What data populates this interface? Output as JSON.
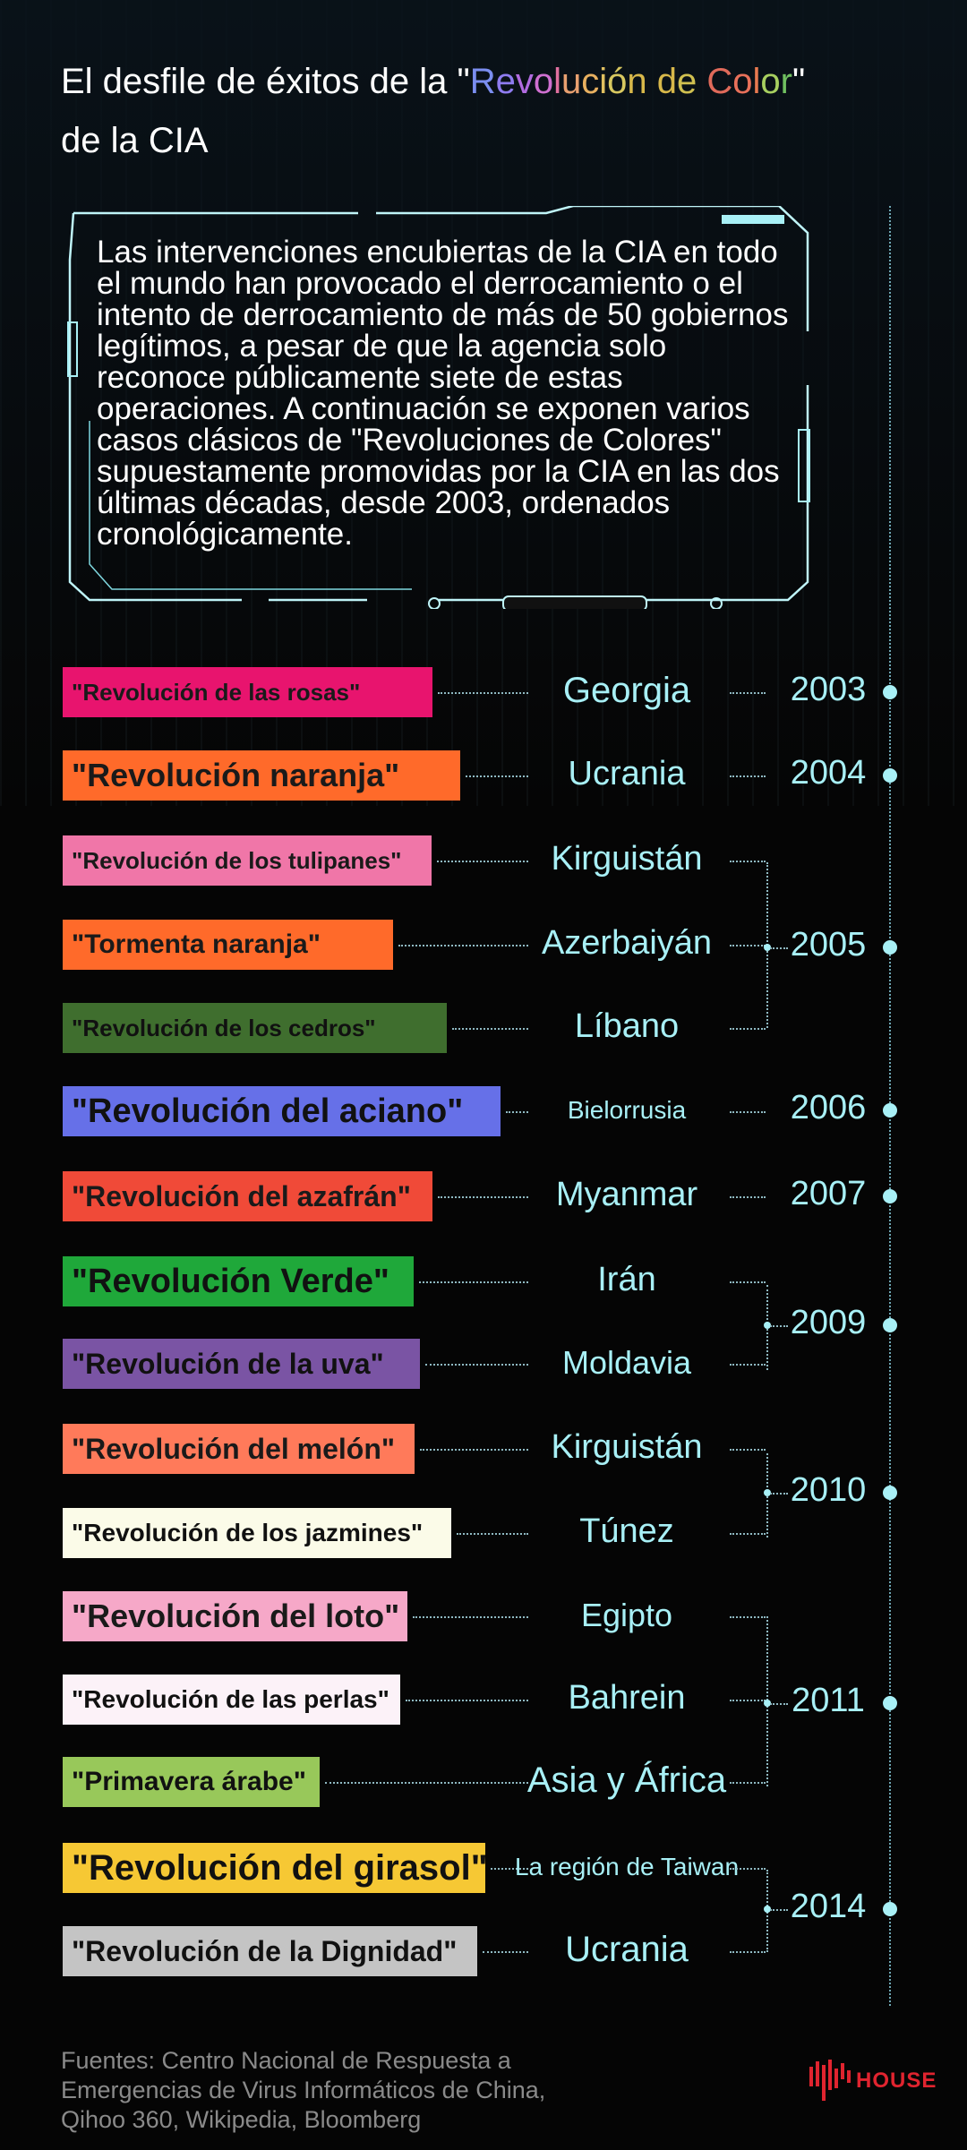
{
  "header": {
    "title_parts": [
      {
        "text": "El desfile de éxitos de la \"",
        "color": "#ffffff"
      },
      {
        "text": "R",
        "color": "#7b8ef0"
      },
      {
        "text": "e",
        "color": "#8f7cf0"
      },
      {
        "text": "v",
        "color": "#b16be0"
      },
      {
        "text": "o",
        "color": "#cf6fd0"
      },
      {
        "text": "l",
        "color": "#e070a0"
      },
      {
        "text": "u",
        "color": "#e8a070"
      },
      {
        "text": "c",
        "color": "#e8b060"
      },
      {
        "text": "i",
        "color": "#e0c060"
      },
      {
        "text": "ó",
        "color": "#d8c860"
      },
      {
        "text": "n d",
        "color": "#d8b84a"
      },
      {
        "text": "e ",
        "color": "#d0c050"
      },
      {
        "text": "C",
        "color": "#e06a5a"
      },
      {
        "text": "o",
        "color": "#e8705a"
      },
      {
        "text": "l",
        "color": "#e87a50"
      },
      {
        "text": "o",
        "color": "#a8d060"
      },
      {
        "text": "r",
        "color": "#70c060"
      },
      {
        "text": "\"",
        "color": "#ffffff"
      },
      {
        "text": " de la CIA",
        "color": "#ffffff",
        "break": true
      }
    ]
  },
  "intro_text": "Las intervenciones encubiertas de la CIA en todo el mundo han provocado el derrocamiento o el intento de derrocamiento de más de 50 gobiernos legítimos, a pesar de que la agencia solo reconoce públicamente siete de estas operaciones. A continuación se exponen varios casos clásicos de \"Revoluciones de Colores\" supuestamente promovidas por la CIA en las dos últimas décadas, desde 2003, ordenados cronológicamente.",
  "events": [
    {
      "label": "\"Revolución de las rosas\"",
      "bg": "#e8146e",
      "fg": "#1a1a1a",
      "country": "Georgia"
    },
    {
      "label": "\"Revolución naranja\"",
      "bg": "#ff6a2a",
      "fg": "#1a1a1a",
      "country": "Ucrania"
    },
    {
      "label": "\"Revolución de los tulipanes\"",
      "bg": "#f076a8",
      "fg": "#1a1a1a",
      "country": "Kirguistán"
    },
    {
      "label": "\"Tormenta naranja\"",
      "bg": "#ff6a2a",
      "fg": "#1a1a1a",
      "country": "Azerbaiyán"
    },
    {
      "label": "\"Revolución de los cedros\"",
      "bg": "#3f6e2e",
      "fg": "#111111",
      "country": "Líbano"
    },
    {
      "label": "\"Revolución del aciano\"",
      "bg": "#6670e8",
      "fg": "#111111",
      "country": "Bielorrusia"
    },
    {
      "label": "\"Revolución del azafrán\"",
      "bg": "#f04a38",
      "fg": "#1a1a1a",
      "country": "Myanmar"
    },
    {
      "label": "\"Revolución Verde\"",
      "bg": "#1fa83a",
      "fg": "#111111",
      "country": "Irán"
    },
    {
      "label": "\"Revolución de la uva\"",
      "bg": "#7a54a4",
      "fg": "#111111",
      "country": "Moldavia"
    },
    {
      "label": "\"Revolución del melón\"",
      "bg": "#ff7a5a",
      "fg": "#1a1a1a",
      "country": "Kirguistán"
    },
    {
      "label": "\"Revolución de los jazmines\"",
      "bg": "#fbfbe8",
      "fg": "#111111",
      "country": "Túnez"
    },
    {
      "label": "\"Revolución del loto\"",
      "bg": "#f6a8c8",
      "fg": "#1a1a1a",
      "country": "Egipto"
    },
    {
      "label": "\"Revolución de las perlas\"",
      "bg": "#fcf2f8",
      "fg": "#111111",
      "country": "Bahrein"
    },
    {
      "label": "\"Primavera árabe\"",
      "bg": "#98c85a",
      "fg": "#111111",
      "country": "Asia y África"
    },
    {
      "label": "\"Revolución del girasol\"",
      "bg": "#f6c834",
      "fg": "#111111",
      "country": "La región de Taiwan"
    },
    {
      "label": "\"Revolución de la Dignidad\"",
      "bg": "#c4c4c4",
      "fg": "#111111",
      "country": "Ucrania"
    }
  ],
  "years": [
    "2003",
    "2004",
    "2005",
    "2006",
    "2007",
    "2009",
    "2010",
    "2011",
    "2014"
  ],
  "sources_text": "Fuentes: Centro Nacional de Respuesta a Emergencias de Virus Informáticos de China, Qihoo 360, Wikipedia, Bloomberg",
  "logo": {
    "text": "HOUSE",
    "color": "#e0242f"
  },
  "colors": {
    "accent": "#a8f0f6",
    "background": "#050505"
  }
}
